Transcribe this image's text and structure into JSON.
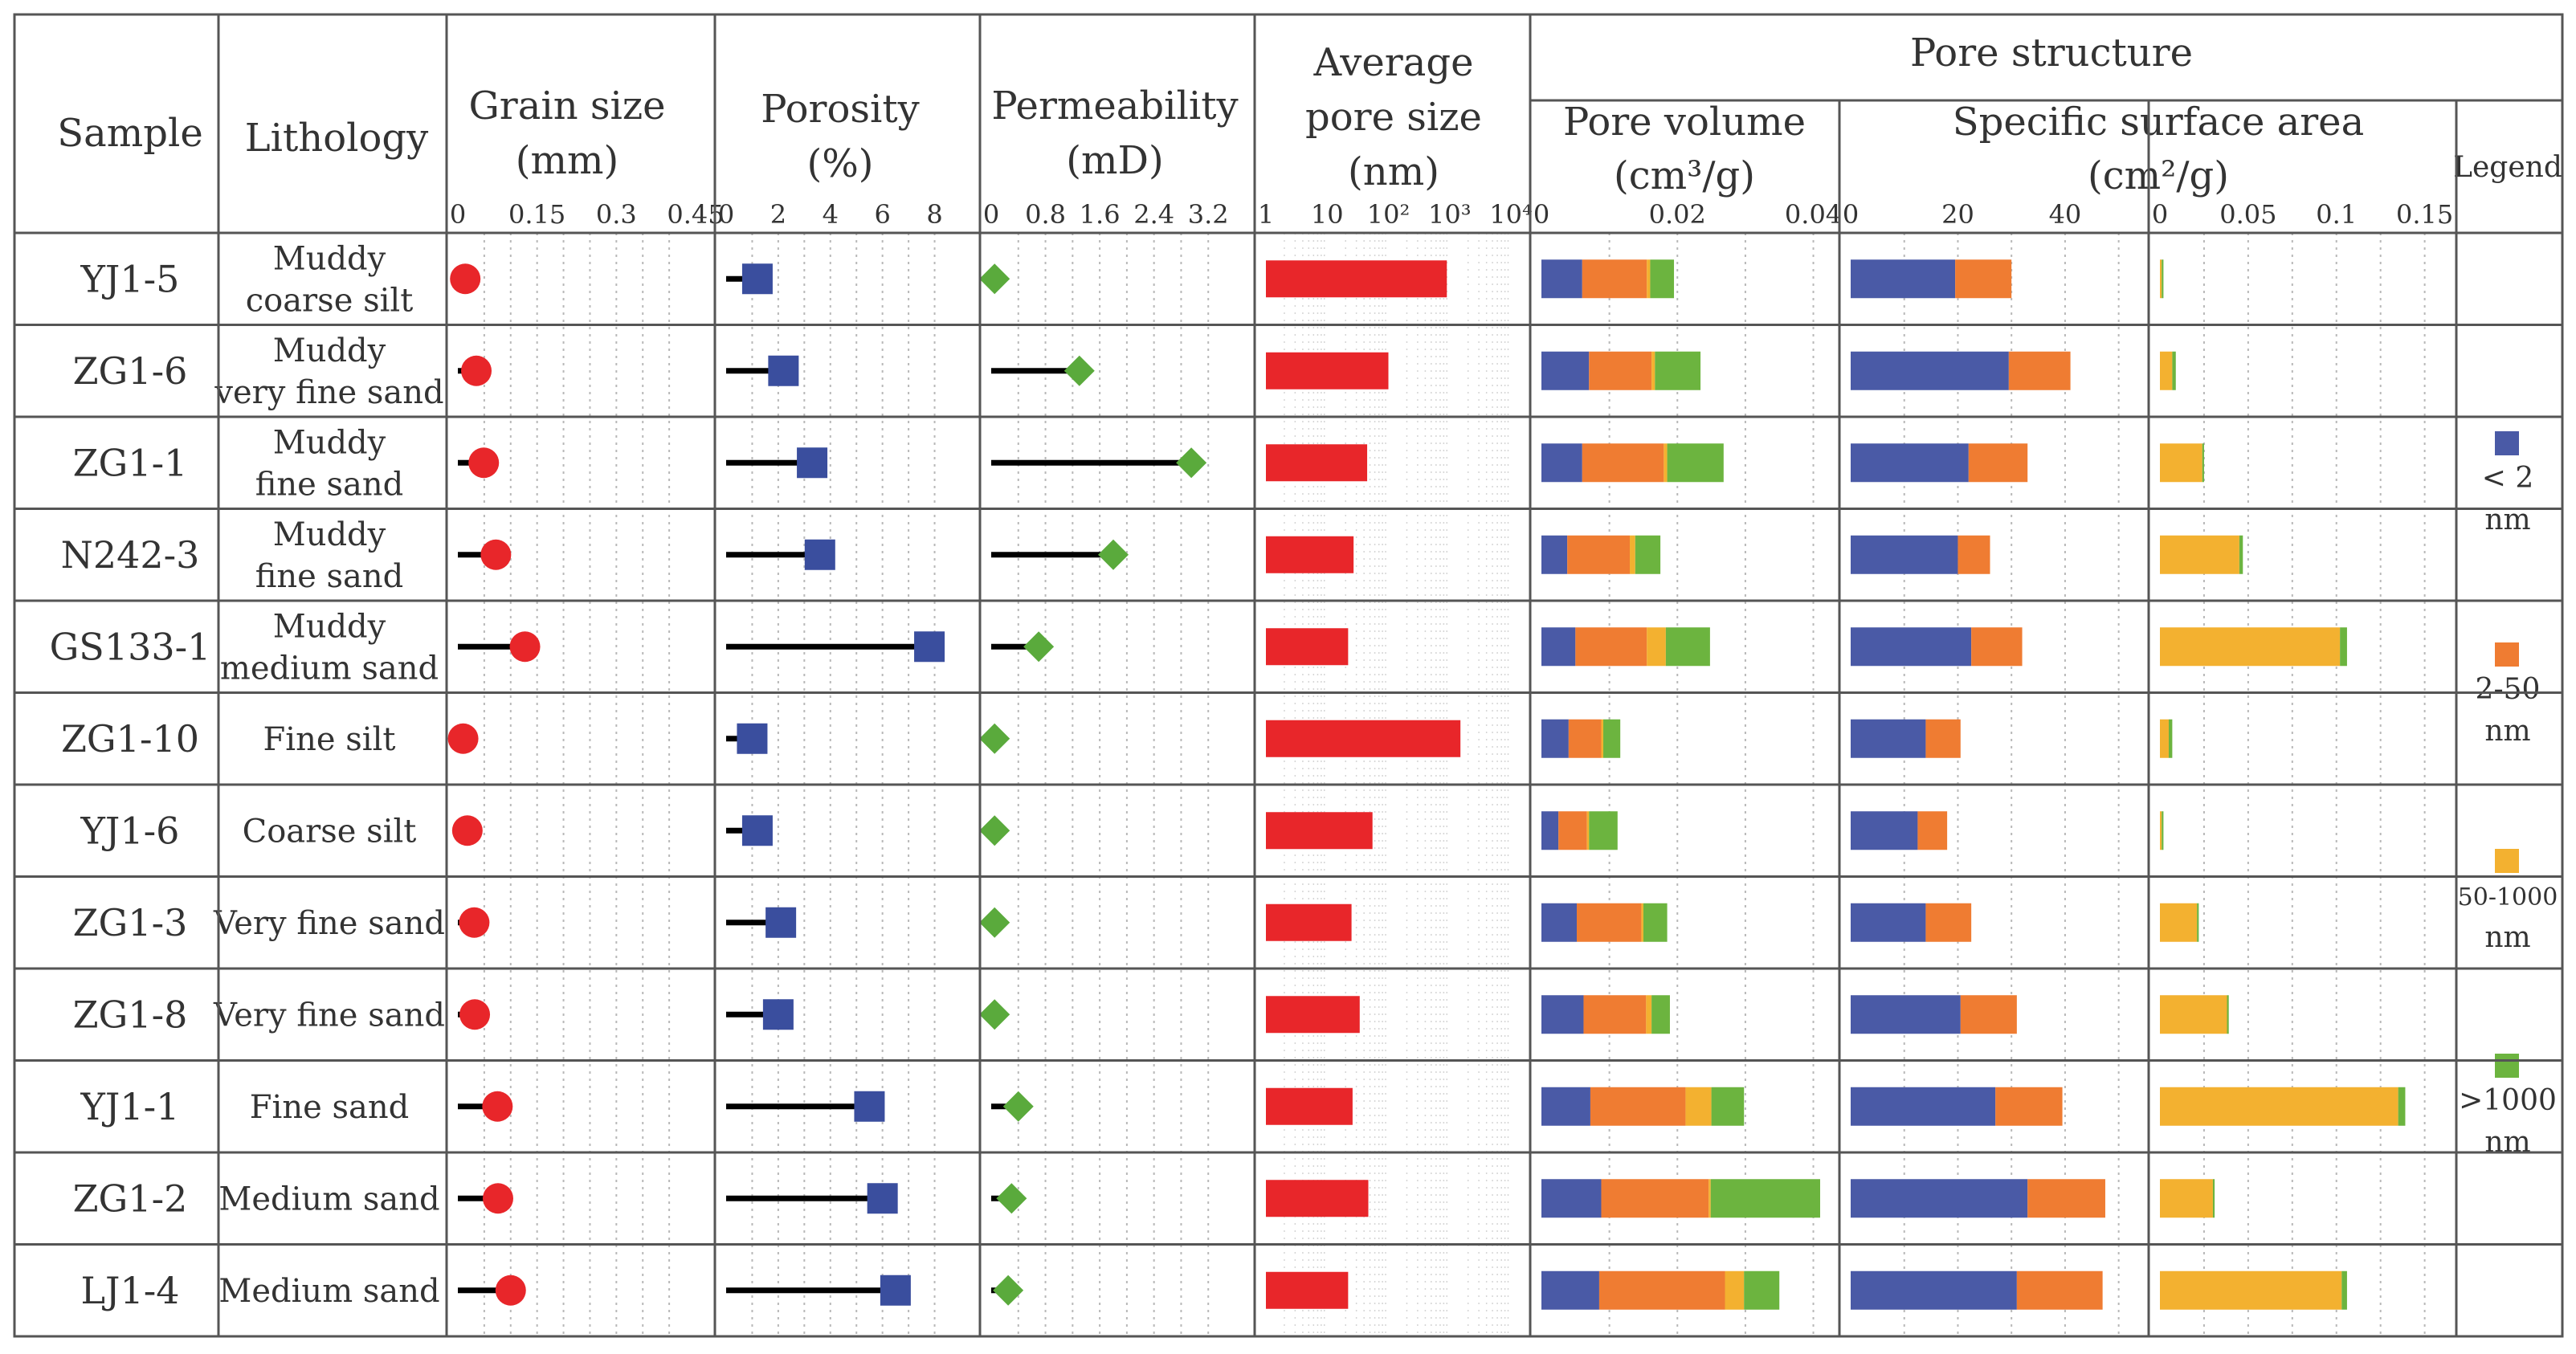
{
  "headers": {
    "sample": "Sample",
    "lithology": "Lithology",
    "grain_size": [
      "Grain size",
      "(mm)"
    ],
    "porosity": [
      "Porosity",
      "(%)"
    ],
    "permeability": [
      "Permeability",
      "(mD)"
    ],
    "avg_pore_size": [
      "Average",
      "pore size",
      "(nm)"
    ],
    "pore_structure": "Pore structure",
    "pore_volume": [
      "Pore volume",
      "(cm³/g)"
    ],
    "ssa": [
      "Specific surface area",
      "(cm²/g)"
    ],
    "legend": "Legend"
  },
  "legend": [
    {
      "name": "lt2",
      "lines": [
        "< 2",
        "nm"
      ],
      "color": "#4a5aa6"
    },
    {
      "name": "2-50",
      "lines": [
        "2-50",
        "nm"
      ],
      "color": "#ef7c32"
    },
    {
      "name": "50-1000",
      "lines": [
        "50-1000",
        "nm"
      ],
      "color": "#f3b130"
    },
    {
      "name": "gt1000",
      "lines": [
        ">1000",
        "nm"
      ],
      "color": "#6cb43f"
    }
  ],
  "colors": {
    "grain": "#e8262a",
    "porosity": "#3a4e9e",
    "permeability": "#5aaa3c",
    "avg_pore": "#e8262a",
    "line": "#000000"
  },
  "chart_data": {
    "type": "table",
    "rows": [
      {
        "sample": "YJ1-5",
        "lithology": [
          "Muddy",
          "coarse silt"
        ]
      },
      {
        "sample": "ZG1-6",
        "lithology": [
          "Muddy",
          "very fine sand"
        ]
      },
      {
        "sample": "ZG1-1",
        "lithology": [
          "Muddy",
          "fine sand"
        ]
      },
      {
        "sample": "N242-3",
        "lithology": [
          "Muddy",
          "fine sand"
        ]
      },
      {
        "sample": "GS133-1",
        "lithology": [
          "Muddy",
          "medium sand"
        ]
      },
      {
        "sample": "ZG1-10",
        "lithology": [
          "Fine silt"
        ]
      },
      {
        "sample": "YJ1-6",
        "lithology": [
          "Coarse silt"
        ]
      },
      {
        "sample": "ZG1-3",
        "lithology": [
          "Very fine sand"
        ]
      },
      {
        "sample": "ZG1-8",
        "lithology": [
          "Very fine sand"
        ]
      },
      {
        "sample": "YJ1-1",
        "lithology": [
          "Fine sand"
        ]
      },
      {
        "sample": "ZG1-2",
        "lithology": [
          "Medium sand"
        ]
      },
      {
        "sample": "LJ1-4",
        "lithology": [
          "Medium sand"
        ]
      }
    ],
    "grain_size": {
      "ticks": [
        "0",
        "0.15",
        "0.3",
        "0.45"
      ],
      "tick_values": [
        0,
        0.15,
        0.3,
        0.45
      ],
      "minor_step": 0.05,
      "xlim": [
        0,
        0.45
      ],
      "values": [
        0.014,
        0.035,
        0.049,
        0.072,
        0.127,
        0.01,
        0.018,
        0.031,
        0.032,
        0.075,
        0.076,
        0.1
      ]
    },
    "porosity": {
      "ticks": [
        "0",
        "2",
        "4",
        "6",
        "8"
      ],
      "tick_values": [
        0,
        2,
        4,
        6,
        8
      ],
      "minor_step": 1,
      "xlim": [
        0,
        9
      ],
      "values": [
        1.2,
        2.2,
        3.3,
        3.6,
        7.8,
        1.0,
        1.2,
        2.1,
        2.0,
        5.5,
        6.0,
        6.5
      ]
    },
    "permeability": {
      "ticks": [
        "0",
        "0.8",
        "1.6",
        "2.4",
        "3.2"
      ],
      "tick_values": [
        0,
        0.8,
        1.6,
        2.4,
        3.2
      ],
      "minor_step": 0.4,
      "xlim": [
        0,
        3.6
      ],
      "values": [
        0.05,
        1.3,
        2.95,
        1.8,
        0.7,
        0.05,
        0.05,
        0.05,
        0.05,
        0.4,
        0.3,
        0.25
      ]
    },
    "avg_pore_size": {
      "ticks": [
        "1",
        "10",
        "10²",
        "10³",
        "10⁴"
      ],
      "log_min": 0,
      "log_max": 4,
      "log_scale": true,
      "values": [
        900,
        100,
        45,
        27,
        22,
        1500,
        55,
        25,
        34,
        26,
        47,
        22
      ]
    },
    "pore_volume": {
      "ticks": [
        "0",
        "0.02",
        "0.04"
      ],
      "tick_values": [
        0,
        0.02,
        0.04
      ],
      "minor_step": 0.01,
      "xlim": [
        0,
        0.041
      ],
      "series": [
        {
          "name": "< 2 nm",
          "values": [
            0.006,
            0.007,
            0.006,
            0.0038,
            0.005,
            0.004,
            0.0025,
            0.0052,
            0.0062,
            0.0072,
            0.0088,
            0.0085
          ]
        },
        {
          "name": "2-50 nm",
          "values": [
            0.0095,
            0.0092,
            0.012,
            0.0092,
            0.0105,
            0.0048,
            0.0042,
            0.0095,
            0.0092,
            0.014,
            0.0158,
            0.0185
          ]
        },
        {
          "name": "50-1000 nm",
          "values": [
            0.0005,
            0.0005,
            0.0005,
            0.0008,
            0.0028,
            0.0003,
            0.0003,
            0.0003,
            0.0008,
            0.0038,
            0.0003,
            0.0028
          ]
        },
        {
          "name": ">1000 nm",
          "values": [
            0.0035,
            0.0067,
            0.0083,
            0.0037,
            0.0065,
            0.0025,
            0.0042,
            0.0035,
            0.0027,
            0.0048,
            0.0161,
            0.0052
          ]
        }
      ]
    },
    "ssa": {
      "ticks": [
        "0",
        "20",
        "40"
      ],
      "tick_values": [
        0,
        20,
        40
      ],
      "minor_step": 10,
      "xlim": [
        0,
        52
      ],
      "series": [
        {
          "name": "< 2 nm",
          "values": [
            19.5,
            29.5,
            22,
            20,
            22.5,
            14,
            12.5,
            14,
            20.5,
            27,
            33,
            31
          ]
        },
        {
          "name": "2-50 nm",
          "values": [
            10.5,
            11.5,
            11,
            6,
            9.5,
            6.5,
            5.5,
            8.5,
            10.5,
            12.5,
            14.5,
            16
          ]
        },
        {
          "name": "50-1000 nm",
          "values": [
            0,
            0,
            0,
            0,
            0,
            0,
            0,
            0,
            0,
            0,
            0,
            0
          ]
        },
        {
          "name": ">1000 nm",
          "values": [
            0,
            0,
            0,
            0,
            0,
            0,
            0,
            0,
            0,
            0,
            0,
            0
          ]
        }
      ]
    },
    "sw": {
      "ticks": [
        "0",
        "0.05",
        "0.1",
        "0.15"
      ],
      "tick_values": [
        0,
        0.05,
        0.1,
        0.15
      ],
      "minor_step": 0.025,
      "xlim": [
        0,
        0.157
      ],
      "series": [
        {
          "name": "< 2 nm",
          "values": [
            0,
            0,
            0,
            0,
            0,
            0,
            0,
            0,
            0,
            0,
            0,
            0
          ]
        },
        {
          "name": "2-50 nm",
          "values": [
            0,
            0,
            0,
            0,
            0,
            0,
            0,
            0,
            0,
            0,
            0,
            0
          ]
        },
        {
          "name": "50-1000 nm",
          "values": [
            0.001,
            0.007,
            0.024,
            0.045,
            0.102,
            0.005,
            0.001,
            0.021,
            0.038,
            0.135,
            0.03,
            0.103
          ]
        },
        {
          "name": ">1000 nm",
          "values": [
            0.001,
            0.002,
            0.001,
            0.002,
            0.004,
            0.002,
            0.001,
            0.001,
            0.001,
            0.004,
            0.001,
            0.003
          ]
        }
      ]
    }
  }
}
